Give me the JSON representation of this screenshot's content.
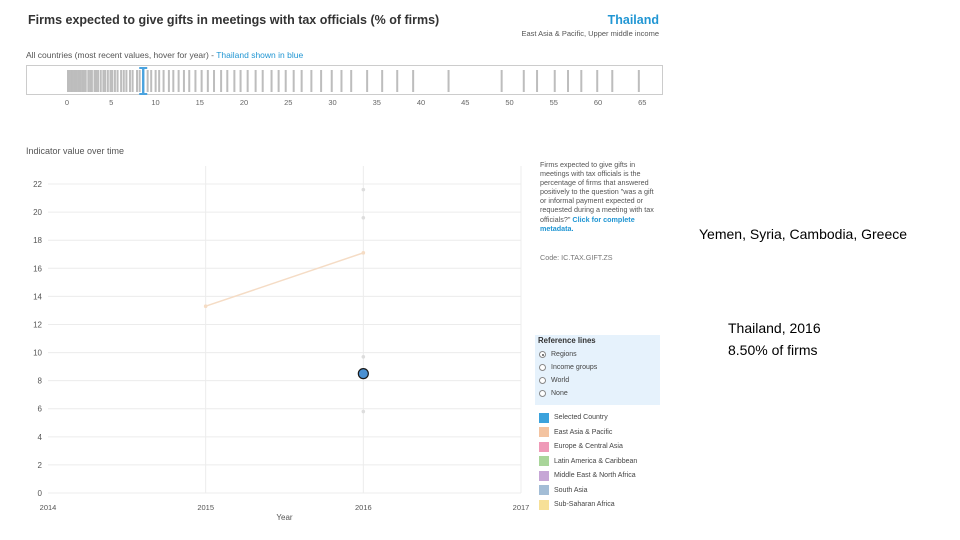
{
  "header": {
    "title": "Firms expected to give gifts in meetings with tax officials (% of firms)",
    "country": "Thailand",
    "region": "East Asia & Pacific, Upper middle income"
  },
  "strip": {
    "label_prefix": "All countries (most recent values, hover for year) -",
    "label_highlight": "Thailand shown in blue",
    "ticks": [
      "0",
      "5",
      "10",
      "15",
      "20",
      "25",
      "30",
      "35",
      "40",
      "45",
      "50",
      "55",
      "60",
      "65"
    ],
    "highlight_value": 8.5,
    "country_values": [
      0.0,
      0.2,
      0.4,
      0.5,
      0.7,
      0.9,
      1.0,
      1.2,
      1.4,
      1.6,
      1.8,
      2.0,
      2.3,
      2.5,
      2.7,
      3.0,
      3.2,
      3.4,
      3.7,
      4.0,
      4.2,
      4.5,
      4.8,
      5.0,
      5.3,
      5.6,
      6.0,
      6.3,
      6.6,
      7.0,
      7.3,
      7.8,
      8.1,
      8.5,
      9.0,
      9.4,
      9.9,
      10.3,
      10.8,
      11.4,
      11.9,
      12.5,
      13.1,
      13.7,
      14.4,
      15.1,
      15.8,
      16.5,
      17.3,
      18.0,
      18.8,
      19.5,
      20.3,
      21.2,
      22.0,
      23.0,
      23.8,
      24.6,
      25.5,
      26.4,
      27.5,
      28.6,
      29.8,
      30.9,
      32.0,
      33.8,
      35.5,
      37.2,
      39.0,
      43.0,
      49.0,
      51.5,
      53.0,
      55.0,
      56.5,
      58.0,
      59.8,
      61.5,
      64.5
    ]
  },
  "chart_section": {
    "heading": "Indicator value over time",
    "description": "Firms expected to give gifts in meetings with tax officials is the percentage of firms that answered positively to the question \"was a gift or informal payment expected or requested during a meeting with tax officials?\"",
    "metadata_link": "Click for complete metadata.",
    "code": "Code: IC.TAX.GIFT.ZS"
  },
  "chart_data": {
    "type": "line",
    "xlabel": "Year",
    "ylabel": "",
    "x_ticks": [
      "2014",
      "2015",
      "2016",
      "2017"
    ],
    "y_ticks": [
      "0",
      "2",
      "4",
      "6",
      "8",
      "10",
      "12",
      "14",
      "16",
      "18",
      "20",
      "22"
    ],
    "xlim": [
      2014,
      2017
    ],
    "ylim": [
      0,
      23
    ],
    "grid": true,
    "series": [
      {
        "name": "East Asia & Pacific",
        "color": "#f5dcc5",
        "x": [
          2015,
          2016
        ],
        "y": [
          13.3,
          17.1
        ]
      },
      {
        "name": "Selected Country",
        "color": "#4a90d2",
        "x": [
          2016
        ],
        "y": [
          8.5
        ]
      }
    ],
    "reference_markers": {
      "x": 2016,
      "y": [
        21.6,
        19.6,
        9.7,
        5.8
      ],
      "color": "#dddddd"
    }
  },
  "reference_lines": {
    "title": "Reference lines",
    "options": [
      "Regions",
      "Income groups",
      "World",
      "None"
    ],
    "selected": "Regions"
  },
  "legend": {
    "items": [
      {
        "label": "Selected Country",
        "color": "#3ba2dc"
      },
      {
        "label": "East Asia & Pacific",
        "color": "#f3c3a0"
      },
      {
        "label": "Europe & Central Asia",
        "color": "#ef9ab8"
      },
      {
        "label": "Latin America & Caribbean",
        "color": "#a9d59a"
      },
      {
        "label": "Middle East & North Africa",
        "color": "#c6a6d6"
      },
      {
        "label": "South Asia",
        "color": "#a3bdd6"
      },
      {
        "label": "Sub-Saharan Africa",
        "color": "#f7e097"
      }
    ]
  },
  "annotations": {
    "countries_note": "Yemen, Syria, Cambodia, Greece",
    "thailand_line1": "Thailand, 2016",
    "thailand_line2": "8.50% of firms"
  }
}
